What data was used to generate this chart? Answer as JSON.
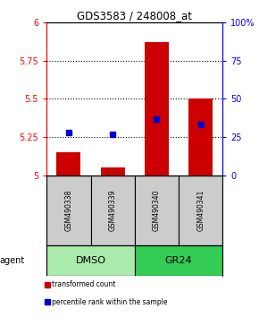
{
  "title": "GDS3583 / 248008_at",
  "samples": [
    "GSM490338",
    "GSM490339",
    "GSM490340",
    "GSM490341"
  ],
  "red_values": [
    5.15,
    5.05,
    5.87,
    5.5
  ],
  "blue_values": [
    28,
    27,
    37,
    33
  ],
  "ylim_left": [
    5.0,
    6.0
  ],
  "ylim_right": [
    0,
    100
  ],
  "yticks_left": [
    5.0,
    5.25,
    5.5,
    5.75,
    6.0
  ],
  "ytick_labels_left": [
    "5",
    "5.25",
    "5.5",
    "5.75",
    "6"
  ],
  "yticks_right": [
    0,
    25,
    50,
    75,
    100
  ],
  "ytick_labels_right": [
    "0",
    "25",
    "50",
    "75",
    "100%"
  ],
  "groups": [
    {
      "label": "DMSO",
      "indices": [
        0,
        1
      ],
      "color": "#AAEAAA"
    },
    {
      "label": "GR24",
      "indices": [
        2,
        3
      ],
      "color": "#33CC55"
    }
  ],
  "bar_width": 0.55,
  "red_color": "#CC0000",
  "blue_color": "#0000CC",
  "sample_box_color": "#CCCCCC",
  "agent_label": "agent",
  "legend_items": [
    {
      "label": "transformed count",
      "color": "#CC0000",
      "marker": "s"
    },
    {
      "label": "percentile rank within the sample",
      "color": "#0000CC",
      "marker": "s"
    }
  ],
  "grid_dotted_at": [
    5.25,
    5.5,
    5.75
  ],
  "base_value": 5.0
}
